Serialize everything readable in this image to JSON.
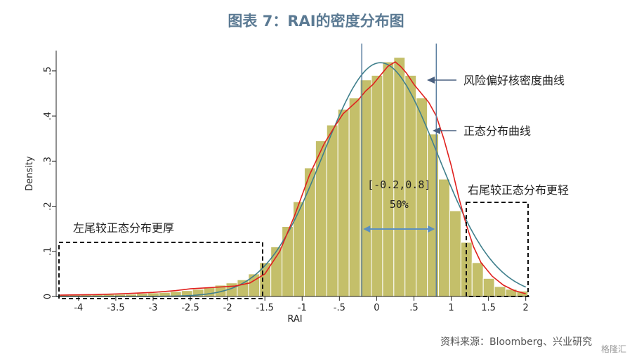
{
  "title": "图表 7：RAI的密度分布图",
  "source": "资料来源：Bloomberg、兴业研究",
  "watermark": "格隆汇",
  "chart_data": {
    "type": "bar",
    "xlabel": "RAI",
    "ylabel": "Density",
    "xlim": [
      -4.3,
      2.05
    ],
    "ylim": [
      0,
      0.545
    ],
    "x_ticks": [
      -4,
      -3.5,
      -3,
      -2.5,
      -2,
      -1.5,
      -1,
      -0.5,
      0,
      0.5,
      1,
      1.5,
      2
    ],
    "x_tick_labels": [
      "-4",
      "-3.5",
      "-3",
      "-2.5",
      "-2",
      "-1.5",
      "-1",
      "-.5",
      "0",
      ".5",
      "1",
      "1.5",
      "2"
    ],
    "y_ticks": [
      0,
      0.1,
      0.2,
      0.3,
      0.4,
      0.5
    ],
    "y_tick_labels": [
      "0",
      ".1",
      ".2",
      ".3",
      ".4",
      ".5"
    ],
    "bin_width": 0.15,
    "bin_start": -4.27,
    "histogram": [
      0.004,
      0.004,
      0.004,
      0.004,
      0.005,
      0.005,
      0.005,
      0.007,
      0.008,
      0.009,
      0.011,
      0.013,
      0.016,
      0.02,
      0.025,
      0.03,
      0.037,
      0.05,
      0.075,
      0.11,
      0.155,
      0.21,
      0.285,
      0.345,
      0.38,
      0.415,
      0.44,
      0.48,
      0.49,
      0.52,
      0.53,
      0.49,
      0.44,
      0.36,
      0.26,
      0.19,
      0.12,
      0.075,
      0.04,
      0.022,
      0.016,
      0.012
    ],
    "kernel_density": {
      "name": "风险偏好核密度曲线",
      "color": "#e0201e",
      "x": [
        -4.25,
        -3.8,
        -3.4,
        -3.0,
        -2.7,
        -2.5,
        -2.3,
        -2.1,
        -1.9,
        -1.7,
        -1.5,
        -1.3,
        -1.1,
        -0.9,
        -0.7,
        -0.55,
        -0.45,
        -0.35,
        -0.25,
        -0.15,
        -0.05,
        0.05,
        0.15,
        0.25,
        0.32,
        0.4,
        0.5,
        0.6,
        0.7,
        0.8,
        0.9,
        1.0,
        1.1,
        1.2,
        1.3,
        1.4,
        1.55,
        1.7,
        1.85,
        2.0
      ],
      "y": [
        0.003,
        0.004,
        0.006,
        0.009,
        0.013,
        0.017,
        0.019,
        0.021,
        0.023,
        0.03,
        0.05,
        0.1,
        0.18,
        0.27,
        0.34,
        0.38,
        0.405,
        0.42,
        0.435,
        0.455,
        0.47,
        0.49,
        0.51,
        0.52,
        0.51,
        0.495,
        0.47,
        0.45,
        0.43,
        0.4,
        0.35,
        0.29,
        0.22,
        0.16,
        0.11,
        0.075,
        0.045,
        0.025,
        0.013,
        0.006
      ]
    },
    "normal_density": {
      "name": "正态分布曲线",
      "color": "#3f7f8c",
      "mean": 0.05,
      "sd": 0.77
    },
    "interval": {
      "lo": -0.2,
      "hi": 0.8,
      "label": "[-0.2,0.8]",
      "share": "50%"
    },
    "vlines": [
      -0.2,
      0.8
    ],
    "annotations": [
      {
        "text": "风险偏好核密度曲线"
      },
      {
        "text": "正态分布曲线"
      },
      {
        "text": "右尾较正态分布更轻"
      },
      {
        "text": "左尾较正态分布更厚"
      }
    ],
    "grid": false,
    "legend": "none"
  }
}
